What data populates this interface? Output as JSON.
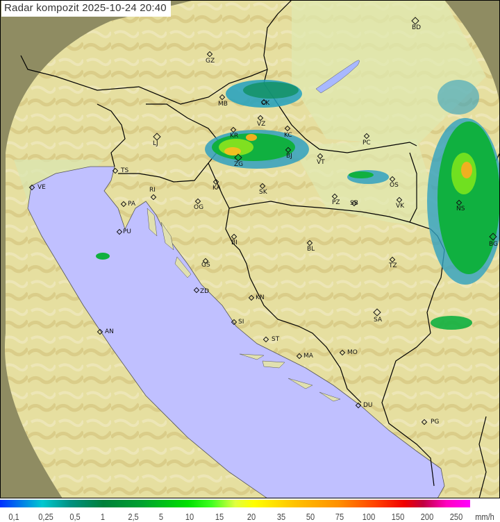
{
  "header": {
    "title": "Radar kompozit  2025-10-24   20:40"
  },
  "map": {
    "colors": {
      "sea": "#c0c0ff",
      "land": "#e8e6a8",
      "outside_coverage": "#8c8a60",
      "border": "#000000"
    },
    "cities": [
      "GZ",
      "BD",
      "MB",
      "CK",
      "VZ",
      "KR",
      "KC",
      "LJ",
      "ZG",
      "BJ",
      "VT",
      "PC",
      "TS",
      "VE",
      "RI",
      "KA",
      "SK",
      "OS",
      "PA",
      "OG",
      "PZ",
      "SB",
      "VK",
      "NS",
      "PU",
      "BG",
      "BI",
      "BL",
      "GS",
      "TZ",
      "ZD",
      "KN",
      "SA",
      "SI",
      "AN",
      "ST",
      "MA",
      "MO",
      "DU",
      "PG"
    ]
  },
  "legend": {
    "labels": [
      "0,1",
      "0,25",
      "0,5",
      "1",
      "2,5",
      "5",
      "10",
      "15",
      "20",
      "35",
      "50",
      "75",
      "100",
      "150",
      "200",
      "250"
    ],
    "unit": "mm/h",
    "colors": [
      "#0030ff",
      "#00c8d0",
      "#00803a",
      "#00e000",
      "#ffff00",
      "#ff9000",
      "#f00000",
      "#ff00ff"
    ]
  }
}
